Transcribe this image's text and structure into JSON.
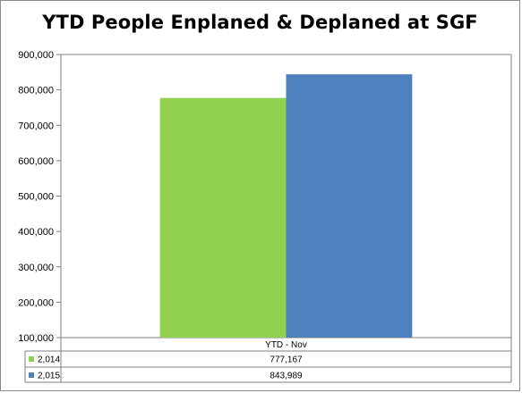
{
  "chart_data": {
    "type": "bar",
    "title": "YTD People Enplaned & Deplaned at SGF",
    "categories": [
      "YTD - Nov"
    ],
    "series": [
      {
        "name": "2,014",
        "values": [
          777167
        ],
        "value_label": "777,167",
        "color": "#92d050"
      },
      {
        "name": "2,015",
        "values": [
          843989
        ],
        "value_label": "843,989",
        "color": "#4f81bd"
      }
    ],
    "ylim": [
      100000,
      900000
    ],
    "yticks": [
      100000,
      200000,
      300000,
      400000,
      500000,
      600000,
      700000,
      800000,
      900000
    ],
    "ytick_labels": [
      "100,000",
      "200,000",
      "300,000",
      "400,000",
      "500,000",
      "600,000",
      "700,000",
      "800,000",
      "900,000"
    ],
    "grid": false,
    "legend": "data-table",
    "xlabel": "",
    "ylabel": ""
  }
}
